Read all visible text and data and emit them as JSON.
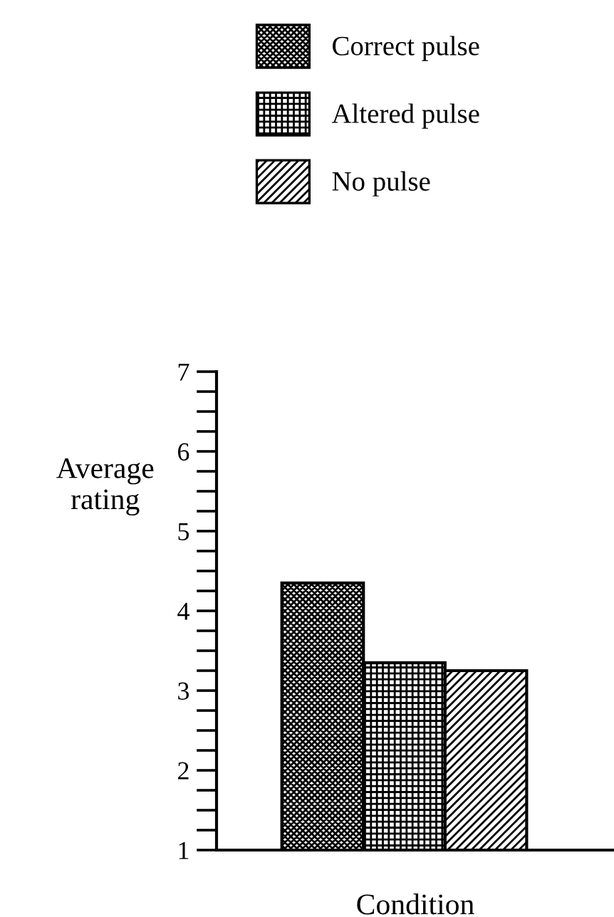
{
  "chart_data": {
    "type": "bar",
    "xlabel": "Condition",
    "ylabel": "Average\nrating",
    "categories": [
      null
    ],
    "series": [
      {
        "name": "Correct pulse",
        "color": "#000000",
        "values": [
          4.35
        ]
      },
      {
        "name": "Altered pulse",
        "color": "#000000",
        "values": [
          3.35
        ]
      },
      {
        "name": "No pulse",
        "color": "#000000",
        "values": [
          3.25
        ]
      }
    ],
    "ylim": [
      1,
      7
    ],
    "yticks": [
      1,
      {
        "value": 1.25,
        "label": null
      },
      {
        "value": 1.5,
        "label": null
      },
      {
        "value": 1.75,
        "label": null
      },
      2,
      {
        "value": 2.25,
        "label": null
      },
      {
        "value": 2.5,
        "label": null
      },
      {
        "value": 2.75,
        "label": null
      },
      3,
      {
        "value": 3.25,
        "label": null
      },
      {
        "value": 3.5,
        "label": null
      },
      {
        "value": 3.75,
        "label": null
      },
      4,
      {
        "value": 4.25,
        "label": null
      },
      {
        "value": 4.5,
        "label": null
      },
      {
        "value": 4.75,
        "label": null
      },
      5,
      {
        "value": 5.25,
        "label": null
      },
      {
        "value": 5.5,
        "label": null
      },
      {
        "value": 5.75,
        "label": null
      },
      6,
      {
        "value": 6.25,
        "label": null
      },
      {
        "value": 6.5,
        "label": null
      },
      {
        "value": 6.75,
        "label": null
      },
      7
    ],
    "tick_labels": "y",
    "legend": "top",
    "grid": false
  }
}
